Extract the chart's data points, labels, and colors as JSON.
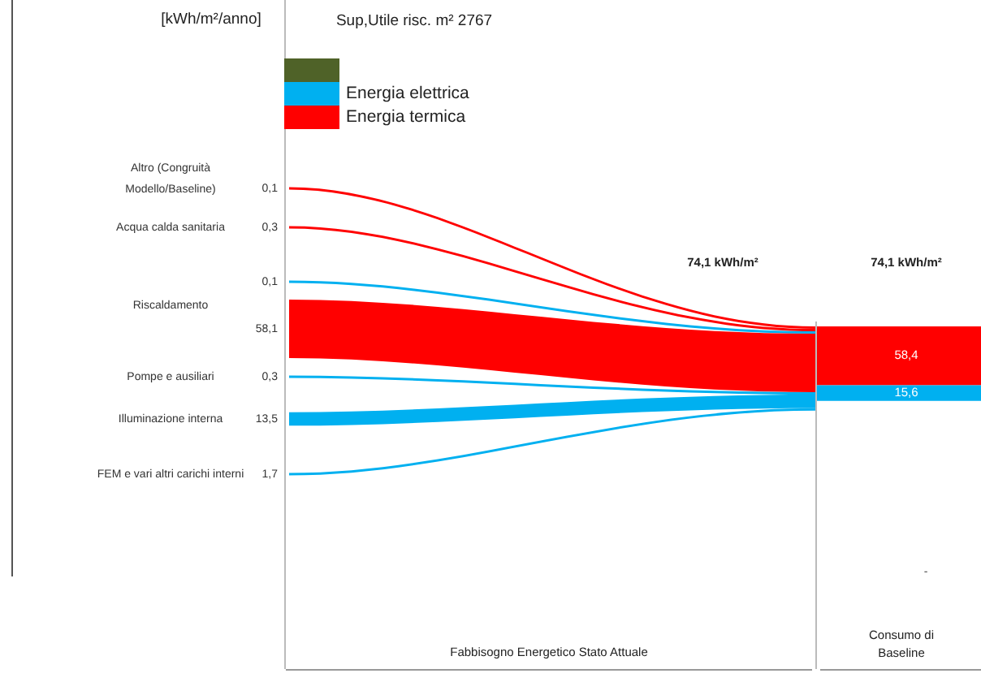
{
  "chart_data": {
    "type": "other",
    "categories": [
      "Altro (Congruità Modello/Baseline)",
      "Acqua calda sanitaria",
      "Riscaldamento",
      "Pompe e ausiliari",
      "Illuminazione interna",
      "FEM e vari altri carichi interni"
    ],
    "series": [
      {
        "color": "#4f6228",
        "values": [
          null,
          null,
          null,
          null,
          null,
          null
        ]
      },
      {
        "name": "Energia elettrica",
        "color": "#00b0f0",
        "values": [
          null,
          null,
          0.1,
          0.3,
          13.5,
          1.7
        ],
        "value_labels": [
          null,
          null,
          "0,1",
          "0,3",
          "13,5",
          "1,7"
        ]
      },
      {
        "name": "Energia termica",
        "color": "#ff0000",
        "values": [
          0.1,
          0.3,
          58.1,
          null,
          null,
          null
        ],
        "value_labels": [
          "0,1",
          "0,3",
          "58,1",
          null,
          null,
          null
        ]
      }
    ],
    "totals": [
      "58,4",
      "15,6"
    ],
    "legend": "top left",
    "annotations": [
      "[kWh/m²/anno]",
      "Sup,Utile risc. m² 2767",
      "74,1 kWh/m²",
      "74,1 kWh/m²",
      "Fabbisogno Energetico Stato Attuale",
      "Consumo di Baseline",
      "-"
    ]
  }
}
